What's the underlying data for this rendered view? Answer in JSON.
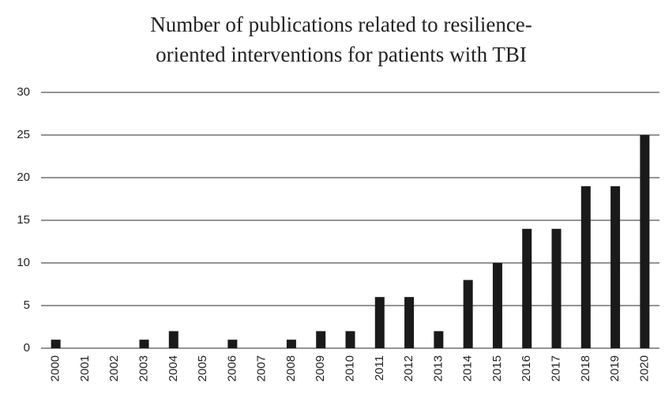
{
  "chart_data": {
    "type": "bar",
    "title": [
      "Number of publications related to resilience-",
      "oriented interventions for patients with TBI"
    ],
    "categories": [
      "2000",
      "2001",
      "2002",
      "2003",
      "2004",
      "2005",
      "2006",
      "2007",
      "2008",
      "2009",
      "2010",
      "2011",
      "2012",
      "2013",
      "2014",
      "2015",
      "2016",
      "2017",
      "2018",
      "2019",
      "2020"
    ],
    "values": [
      1,
      0,
      0,
      1,
      2,
      0,
      1,
      0,
      1,
      2,
      2,
      6,
      6,
      2,
      8,
      10,
      14,
      14,
      19,
      19,
      25
    ],
    "color": "#1a1a1a",
    "ylim": [
      0,
      30
    ],
    "yticks": [
      0,
      5,
      10,
      15,
      20,
      25,
      30
    ],
    "grid": true
  }
}
